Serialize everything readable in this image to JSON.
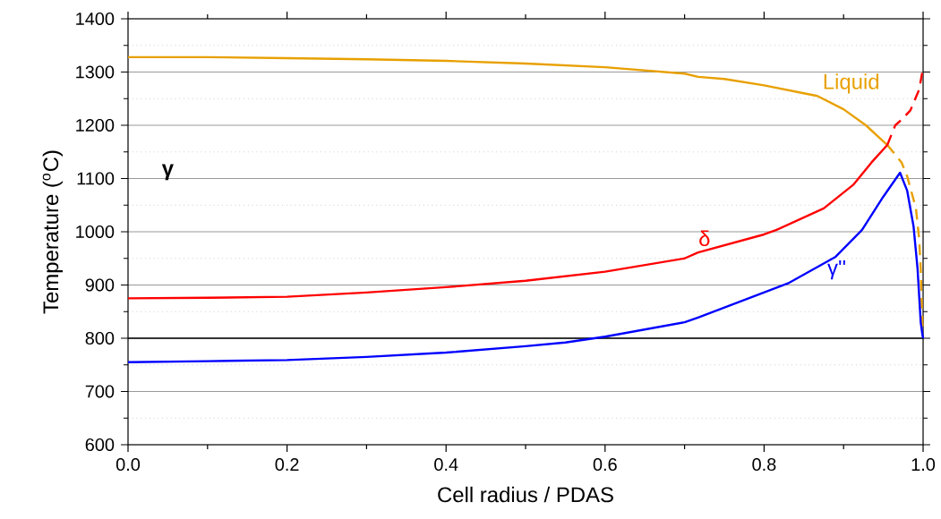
{
  "chart_data": {
    "type": "line",
    "xlabel": "Cell radius / PDAS",
    "ylabel": "Temperature ($^{o}$C)",
    "xlim": [
      0,
      1
    ],
    "ylim": [
      600,
      1400
    ],
    "xticks": [
      {
        "value": 0,
        "label": "0.0"
      },
      0.2,
      0.4,
      0.6,
      0.8,
      {
        "value": 1,
        "label": "1.0"
      }
    ],
    "yticks": [
      600,
      700,
      800,
      900,
      1000,
      1100,
      1200,
      1300,
      1400
    ],
    "grid": "y",
    "ref_lines": [
      {
        "axis": "y",
        "value": 800,
        "color": "#000000"
      }
    ],
    "annotations": [
      "γ"
    ],
    "series": [
      {
        "name": "Liquid",
        "color": "#e8a000",
        "line_style": "solid",
        "x": [
          0,
          0.1,
          0.2,
          0.3,
          0.4,
          0.5,
          0.6,
          0.7,
          0.717,
          0.75,
          0.8,
          0.85,
          0.867,
          0.9,
          0.928,
          0.955
        ],
        "values": [
          1328,
          1328,
          1326,
          1324,
          1321,
          1316,
          1309,
          1297,
          1291,
          1287,
          1275,
          1260,
          1255,
          1230,
          1200,
          1163
        ]
      },
      {
        "color": "#e8a000",
        "line_style": "dashed",
        "x": [
          0.955,
          0.973,
          0.98,
          0.991,
          0.995,
          0.997,
          0.998,
          0.999,
          1
        ],
        "values": [
          1163,
          1130,
          1104,
          1044,
          987,
          931,
          876,
          830,
          810
        ]
      },
      {
        "name": "δ",
        "color": "#ff0000",
        "line_style": "solid",
        "x": [
          0,
          0.1,
          0.2,
          0.3,
          0.4,
          0.5,
          0.6,
          0.7,
          0.717,
          0.8,
          0.815,
          0.875,
          0.912,
          0.935,
          0.955
        ],
        "values": [
          875,
          876,
          878,
          886,
          896,
          908,
          925,
          950,
          961,
          995,
          1003,
          1044,
          1088,
          1130,
          1163
        ]
      },
      {
        "color": "#ff0000",
        "line_style": "dashed",
        "x": [
          0.955,
          0.965,
          0.974,
          0.984,
          0.995,
          0.999
        ],
        "values": [
          1163,
          1200,
          1212,
          1228,
          1267,
          1300
        ]
      },
      {
        "name": "γ''",
        "color": "#0000ff",
        "line_style": "solid",
        "x": [
          0,
          0.1,
          0.2,
          0.3,
          0.4,
          0.5,
          0.55,
          0.6,
          0.7,
          0.717,
          0.83,
          0.89,
          0.923,
          0.95,
          0.971,
          0.98,
          0.988,
          0.993,
          0.997,
          0.999,
          1
        ],
        "values": [
          755,
          757,
          759,
          765,
          773,
          785,
          792,
          803,
          830,
          839,
          903,
          953,
          1003,
          1066,
          1111,
          1077,
          1010,
          931,
          830,
          808,
          800
        ]
      }
    ]
  }
}
